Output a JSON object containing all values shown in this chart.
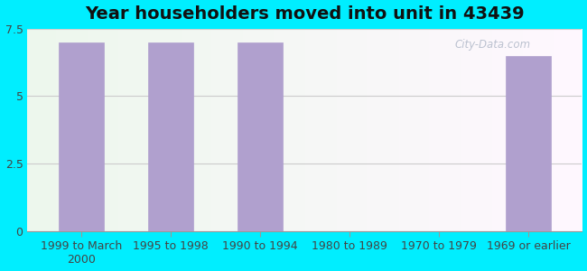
{
  "title": "Year householders moved into unit in 43439",
  "categories": [
    "1999 to March\n2000",
    "1995 to 1998",
    "1990 to 1994",
    "1980 to 1989",
    "1970 to 1979",
    "1969 or earlier"
  ],
  "values": [
    7.0,
    7.0,
    7.0,
    0,
    0,
    6.5
  ],
  "bar_color": "#b0a0ce",
  "bar_edgecolor": "#b0a0ce",
  "ylim": [
    0,
    7.5
  ],
  "yticks": [
    0,
    2.5,
    5,
    7.5
  ],
  "background_outer": "#00eeff",
  "title_fontsize": 14,
  "tick_fontsize": 9,
  "watermark": "City-Data.com",
  "bar_width": 0.5
}
